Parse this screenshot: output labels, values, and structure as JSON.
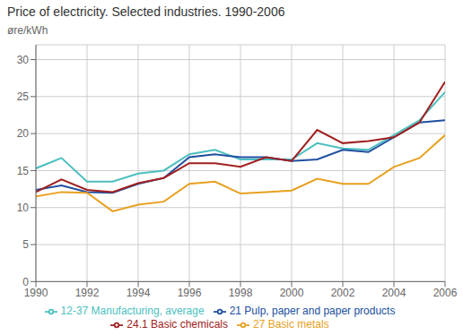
{
  "chart_data": {
    "type": "line",
    "title": "Price of electricity. Selected industries. 1990-2006",
    "y_label": "øre/kWh",
    "x": [
      1990,
      1991,
      1992,
      1993,
      1994,
      1995,
      1996,
      1997,
      1998,
      1999,
      2000,
      2001,
      2002,
      2003,
      2004,
      2005,
      2006
    ],
    "series": [
      {
        "name": "12-37 Manufacturing, average",
        "color": "#4bbfbf",
        "values": [
          15.3,
          16.7,
          13.5,
          13.5,
          14.6,
          15.0,
          17.2,
          17.8,
          16.5,
          16.5,
          16.5,
          18.7,
          18.0,
          17.8,
          19.8,
          21.8,
          25.6
        ]
      },
      {
        "name": "21 Pulp, paper and paper products",
        "color": "#2050a0",
        "values": [
          12.4,
          13.0,
          12.1,
          12.0,
          13.2,
          14.0,
          16.8,
          17.2,
          16.8,
          16.8,
          16.3,
          16.5,
          17.8,
          17.5,
          19.5,
          21.5,
          21.8
        ]
      },
      {
        "name": "24.1 Basic chemicals",
        "color": "#a02020",
        "values": [
          12.1,
          13.8,
          12.4,
          12.1,
          13.3,
          14.0,
          16.0,
          16.0,
          15.5,
          16.8,
          16.3,
          20.5,
          18.7,
          19.0,
          19.5,
          21.5,
          27.0
        ]
      },
      {
        "name": "27 Basic metals",
        "color": "#e8a020",
        "values": [
          11.5,
          12.1,
          12.0,
          9.5,
          10.4,
          10.8,
          13.2,
          13.5,
          11.9,
          12.1,
          12.3,
          13.9,
          13.2,
          13.2,
          15.5,
          16.7,
          19.8
        ]
      }
    ],
    "xlim": [
      1990,
      2006
    ],
    "xticks": [
      1990,
      1992,
      1994,
      1996,
      1998,
      2000,
      2002,
      2004,
      2006
    ],
    "ylim": [
      0,
      32
    ],
    "yticks": [
      0,
      5,
      10,
      15,
      20,
      25,
      30
    ],
    "grid": true,
    "legend": "bottom"
  }
}
